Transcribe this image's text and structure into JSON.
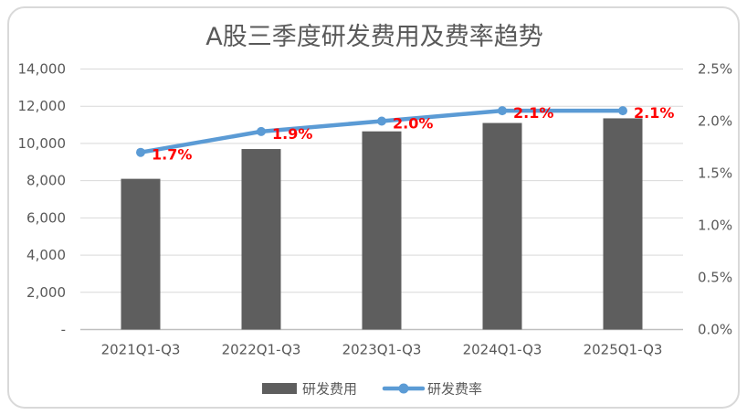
{
  "window": {
    "background": "#FFFFFF",
    "border_color": "#D9D9D9"
  },
  "chart_data": {
    "type": "combo-bar-line",
    "title": "A股三季度研发费用及费率趋势",
    "categories": [
      "2021Q1-Q3",
      "2022Q1-Q3",
      "2023Q1-Q3",
      "2024Q1-Q3",
      "2025Q1-Q3"
    ],
    "series": [
      {
        "name": "研发费用",
        "type": "bar",
        "axis": "left",
        "color": "#5E5E5E",
        "values": [
          8100,
          9700,
          10650,
          11100,
          11350
        ]
      },
      {
        "name": "研发费率",
        "type": "line",
        "axis": "right",
        "color": "#5B9BD5",
        "values": [
          1.7,
          1.9,
          2.0,
          2.1,
          2.1
        ],
        "labels": [
          "1.7%",
          "1.9%",
          "2.0%",
          "2.1%",
          "2.1%"
        ],
        "label_color": "#FF0000"
      }
    ],
    "left_axis": {
      "min": 0,
      "max": 14000,
      "step": 2000,
      "tick_labels": [
        "-",
        "2,000",
        "4,000",
        "6,000",
        "8,000",
        "10,000",
        "12,000",
        "14,000"
      ]
    },
    "right_axis": {
      "min": 0,
      "max": 2.5,
      "step": 0.5,
      "tick_labels": [
        "0.0%",
        "0.5%",
        "1.0%",
        "1.5%",
        "2.0%",
        "2.5%"
      ]
    },
    "grid": true,
    "legend_position": "bottom",
    "styles": {
      "title_color": "#595959",
      "axis_text_color": "#595959",
      "gridline_color": "#D9D9D9",
      "axis_line_color": "#BFBFBF"
    }
  }
}
